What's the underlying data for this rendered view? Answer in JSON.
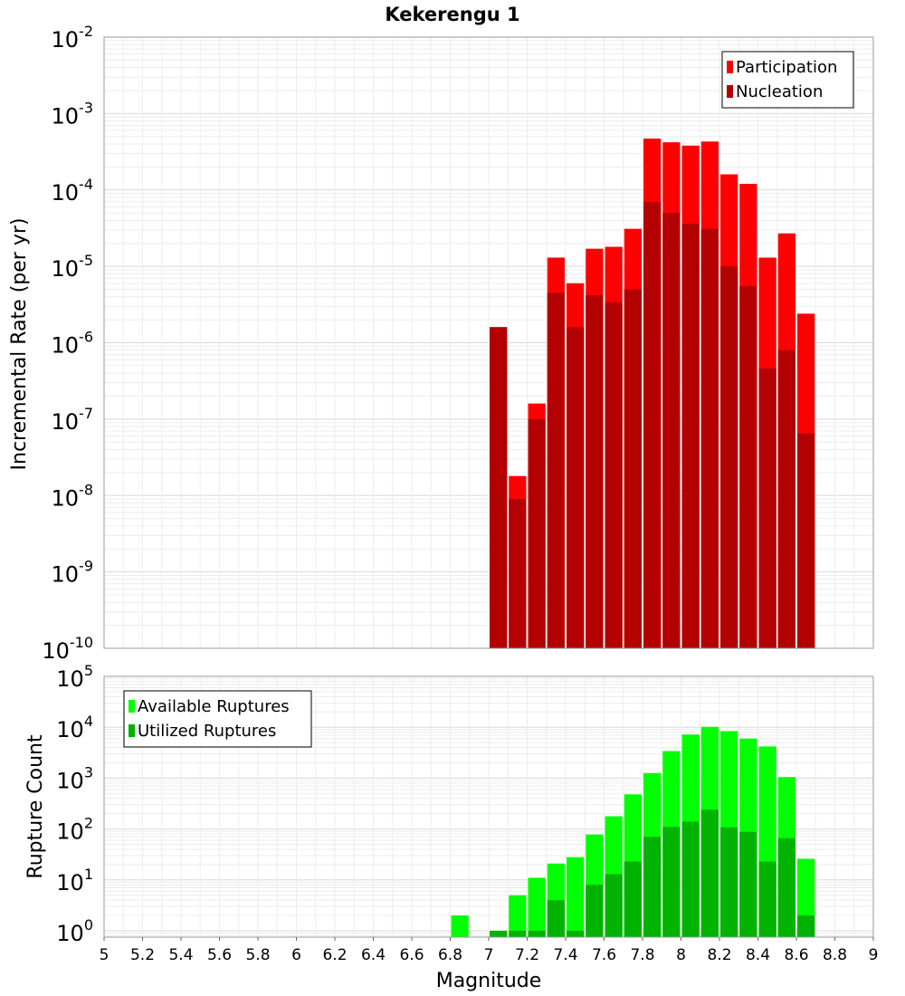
{
  "chart_data": [
    {
      "type": "bar",
      "title": "Kekerengu 1",
      "xlabel": "",
      "ylabel": "Incremental Rate (per yr)",
      "yscale": "log",
      "ylim": [
        1e-10,
        0.01
      ],
      "xlim": [
        5,
        9
      ],
      "bar_width": 0.1,
      "y_tick_exponents": [
        -10,
        -9,
        -8,
        -7,
        -6,
        -5,
        -4,
        -3,
        -2
      ],
      "legend_position": "top-right",
      "grid": true,
      "series": [
        {
          "name": "Participation",
          "color": "#ff0000",
          "x": [
            7.05,
            7.15,
            7.25,
            7.35,
            7.45,
            7.55,
            7.65,
            7.75,
            7.85,
            7.95,
            8.05,
            8.15,
            8.25,
            8.35,
            8.45,
            8.55,
            8.65
          ],
          "values": [
            1.6e-06,
            1.8e-08,
            1.6e-07,
            1.3e-05,
            6e-06,
            1.7e-05,
            1.8e-05,
            3.1e-05,
            0.00047,
            0.00042,
            0.00038,
            0.00043,
            0.00016,
            0.00012,
            1.3e-05,
            2.7e-05,
            2.4e-06
          ]
        },
        {
          "name": "Nucleation",
          "color": "#b30000",
          "x": [
            7.05,
            7.15,
            7.25,
            7.35,
            7.45,
            7.55,
            7.65,
            7.75,
            7.85,
            7.95,
            8.05,
            8.15,
            8.25,
            8.35,
            8.45,
            8.55,
            8.65
          ],
          "values": [
            1.6e-06,
            9e-09,
            1e-07,
            4.5e-06,
            1.6e-06,
            4.2e-06,
            3.4e-06,
            5e-06,
            7e-05,
            5e-05,
            3.6e-05,
            3.1e-05,
            1e-05,
            5.5e-06,
            4.6e-07,
            8e-07,
            6.5e-08
          ]
        }
      ]
    },
    {
      "type": "bar",
      "title": "",
      "xlabel": "Magnitude",
      "ylabel": "Rupture Count",
      "yscale": "log",
      "ylim": [
        0.75,
        100000
      ],
      "xlim": [
        5,
        9
      ],
      "bar_width": 0.1,
      "x_ticks": [
        "5",
        "5.2",
        "5.4",
        "5.6",
        "5.8",
        "6",
        "6.2",
        "6.4",
        "6.6",
        "6.8",
        "7",
        "7.2",
        "7.4",
        "7.6",
        "7.8",
        "8",
        "8.2",
        "8.4",
        "8.6",
        "8.8",
        "9"
      ],
      "y_tick_exponents": [
        0,
        1,
        2,
        3,
        4,
        5
      ],
      "legend_position": "top-left",
      "grid": true,
      "series": [
        {
          "name": "Available Ruptures",
          "color": "#00ff00",
          "x": [
            6.85,
            7.05,
            7.15,
            7.25,
            7.35,
            7.45,
            7.55,
            7.65,
            7.75,
            7.85,
            7.95,
            8.05,
            8.15,
            8.25,
            8.35,
            8.45,
            8.55,
            8.65
          ],
          "values": [
            2,
            1,
            5,
            11,
            21,
            28,
            78,
            178,
            480,
            1260,
            3400,
            7200,
            10200,
            8400,
            6000,
            4200,
            1050,
            26
          ]
        },
        {
          "name": "Utilized Ruptures",
          "color": "#00b300",
          "x": [
            6.85,
            7.05,
            7.15,
            7.25,
            7.35,
            7.45,
            7.55,
            7.65,
            7.75,
            7.85,
            7.95,
            8.05,
            8.15,
            8.25,
            8.35,
            8.45,
            8.55,
            8.65
          ],
          "values": [
            0,
            1,
            1,
            1,
            4,
            1,
            8,
            13,
            23,
            70,
            110,
            140,
            240,
            108,
            88,
            23,
            66,
            2
          ]
        }
      ]
    }
  ]
}
